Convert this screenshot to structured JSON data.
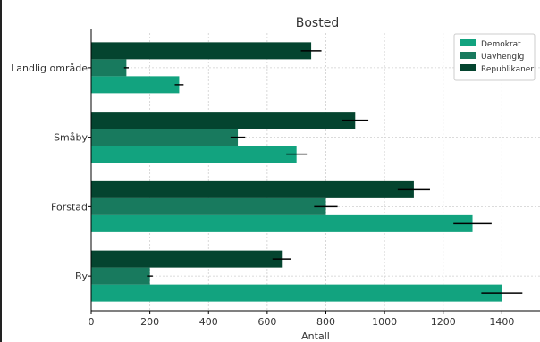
{
  "chart_data": {
    "type": "bar",
    "orientation": "horizontal",
    "title": "Bosted",
    "xlabel": "Antall",
    "ylabel": "",
    "categories": [
      "By",
      "Forstad",
      "Småby",
      "Landlig område"
    ],
    "xlim": [
      0,
      1530
    ],
    "xticks": [
      0,
      200,
      400,
      600,
      800,
      1000,
      1200,
      1400
    ],
    "grid": true,
    "legend_position": "top-right",
    "series": [
      {
        "name": "Demokrat",
        "color": "#12a37f",
        "values": [
          1400,
          1300,
          700,
          300
        ],
        "errors": [
          70,
          65,
          35,
          15
        ]
      },
      {
        "name": "Uavhengig",
        "color": "#187a5e",
        "values": [
          200,
          800,
          500,
          120
        ],
        "errors": [
          10,
          40,
          25,
          8
        ]
      },
      {
        "name": "Republikaner",
        "color": "#04442f",
        "values": [
          650,
          1100,
          900,
          750
        ],
        "errors": [
          32,
          55,
          45,
          35
        ]
      }
    ]
  }
}
